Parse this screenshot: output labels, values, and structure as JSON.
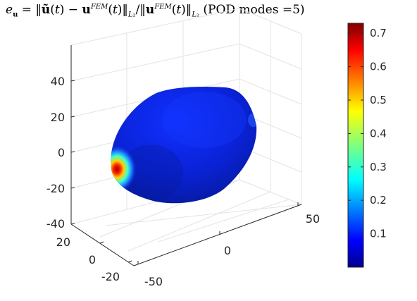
{
  "title": {
    "text": "e_u = ||ũ(t) − u^FEM(t)||_L2 / ||u^FEM(t)||_L2 (POD modes =5)",
    "suffix": "(POD modes =5)"
  },
  "chart_data": {
    "type": "surface3d",
    "title": "e_u = ||ũ(t) − u^FEM(t)||_L2 / ||u^FEM(t)||_L2 (POD modes =5)",
    "z_ticks": [
      "40",
      "20",
      "0",
      "-20",
      "-40"
    ],
    "y_ticks": [
      "20",
      "0",
      "-20"
    ],
    "x_ticks": [
      "-50",
      "0",
      "50"
    ],
    "xlim": [
      -50,
      50
    ],
    "ylim": [
      -25,
      25
    ],
    "zlim": [
      -40,
      40
    ],
    "grid": true,
    "colormap": "jet",
    "colorbar": {
      "ticks": [
        "0.7",
        "0.6",
        "0.5",
        "0.4",
        "0.3",
        "0.2",
        "0.1"
      ],
      "tick_values": [
        0.7,
        0.6,
        0.5,
        0.4,
        0.3,
        0.2,
        0.1
      ],
      "range": [
        0.0,
        0.73
      ],
      "placement": "right"
    },
    "field_summary": {
      "background_value": 0.03,
      "max_value": 0.73,
      "max_location": "left side of surface"
    }
  },
  "colors": {
    "surface_base": "#0a22d6",
    "surface_dark": "#00109c",
    "hotspot": "#b40000",
    "axis": "#262626",
    "grid": "#e3e3e3"
  }
}
